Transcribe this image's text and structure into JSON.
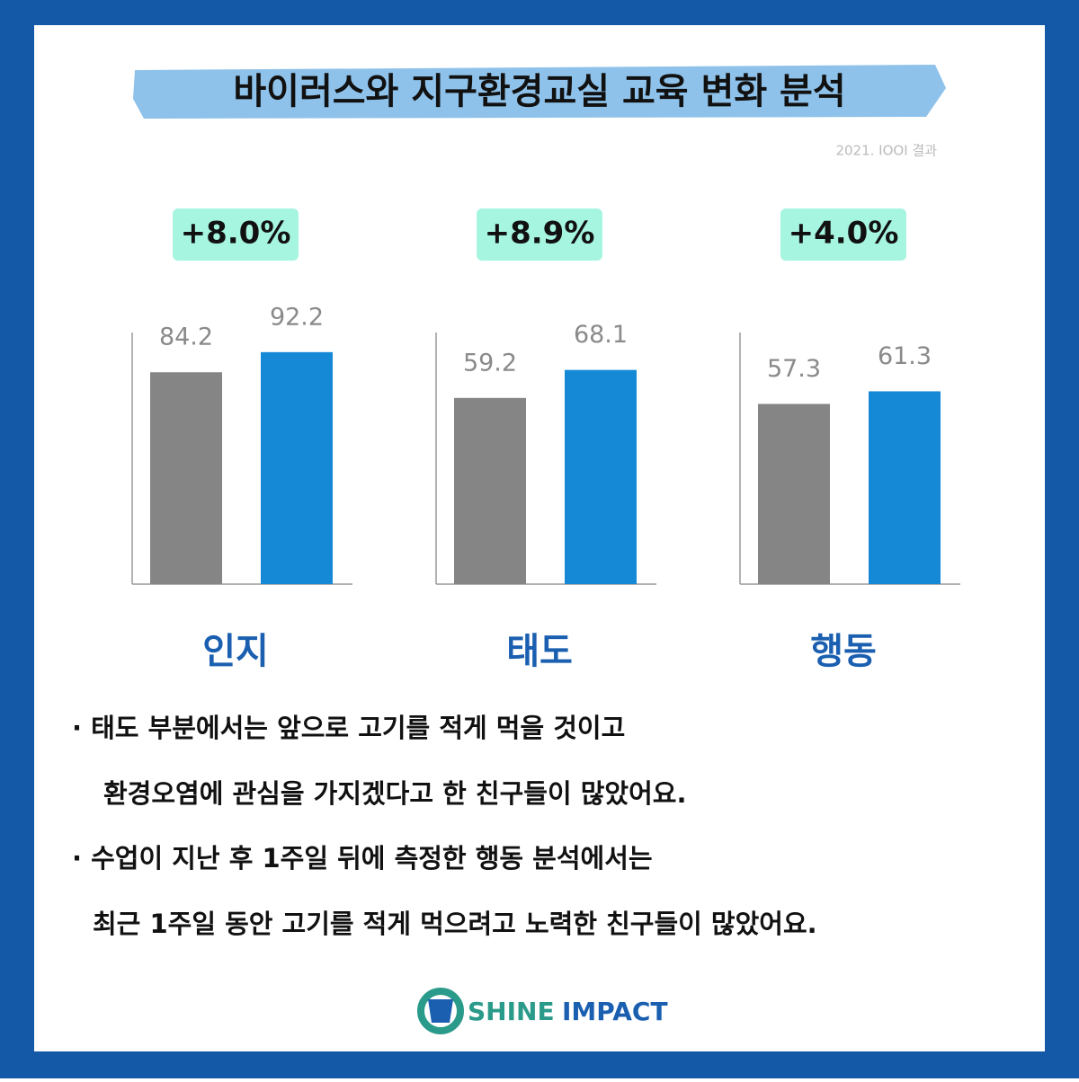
{
  "header": {
    "title": "바이러스와 지구환경교실 교육 변화 분석",
    "note": "2021. IOOI 결과"
  },
  "chart_data": [
    {
      "type": "bar",
      "title": "인지",
      "annotation": "+8.0%",
      "categories": [
        null,
        null
      ],
      "values": [
        84.2,
        92.2
      ],
      "colors": [
        "#858585",
        "#1589d6"
      ],
      "ylim": [
        0,
        100
      ]
    },
    {
      "type": "bar",
      "title": "태도",
      "annotation": "+8.9%",
      "categories": [
        null,
        null
      ],
      "values": [
        59.2,
        68.1
      ],
      "colors": [
        "#858585",
        "#1589d6"
      ],
      "ylim": [
        0,
        80
      ]
    },
    {
      "type": "bar",
      "title": "행동",
      "annotation": "+4.0%",
      "categories": [
        null,
        null
      ],
      "values": [
        57.3,
        61.3
      ],
      "colors": [
        "#858585",
        "#1589d6"
      ],
      "ylim": [
        0,
        80
      ]
    }
  ],
  "notes": [
    "· 태도 부분에서는 앞으로 고기를 적게 먹을 것이고",
    "환경오염에 관심을 가지겠다고 한 친구들이 많았어요.",
    "· 수업이 지난 후 1주일 뒤에 측정한 행동 분석에서는",
    "최근 1주일 동안 고기를 적게 먹으려고 노력한 친구들이 많았어요."
  ],
  "footer": {
    "logo_left": "SHINE",
    "logo_right": "IMPACT"
  }
}
